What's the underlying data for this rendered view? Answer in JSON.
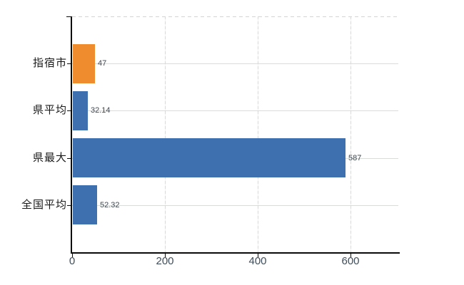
{
  "chart_data": {
    "type": "bar",
    "orientation": "horizontal",
    "categories": [
      "指宿市",
      "県平均",
      "県最大",
      "全国平均"
    ],
    "values": [
      47,
      32.14,
      587,
      52.32
    ],
    "value_labels": [
      "47",
      "32.14",
      "587",
      "52.32"
    ],
    "series_colors": [
      "#ef8c2e",
      "#3e6fae",
      "#3e6fae",
      "#3e6fae"
    ],
    "x_ticks": [
      0,
      200,
      400,
      600
    ],
    "x_tick_labels": [
      "0",
      "200",
      "400",
      "600"
    ],
    "xlim": [
      0,
      703
    ],
    "title": "",
    "xlabel": "",
    "ylabel": "",
    "grid": true,
    "legend": false
  },
  "colors": {
    "highlight_bar": "#ef8c2e",
    "default_bar": "#3e6fae",
    "axis": "#0a0a0a",
    "gridline": "#d9d9d9",
    "tick_label_text": "#3f4d5a",
    "category_text": "#1a1a1a",
    "value_text": "#3f4750",
    "background": "#ffffff"
  }
}
